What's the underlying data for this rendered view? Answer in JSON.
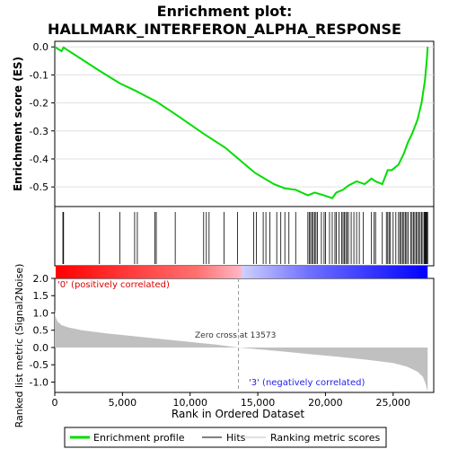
{
  "chart_data": [
    {
      "type": "line",
      "title_line1": "Enrichment plot:",
      "title_line2": "HALLMARK_INTERFERON_ALPHA_RESPONSE",
      "ylabel": "Enrichment score (ES)",
      "ylim": [
        -0.57,
        0.02
      ],
      "yticks": [
        0.0,
        -0.1,
        -0.2,
        -0.3,
        -0.4,
        -0.5
      ],
      "ytick_labels": [
        "0.0",
        "-0.1",
        "-0.2",
        "-0.3",
        "-0.4",
        "-0.5"
      ],
      "xlim": [
        0,
        28000
      ],
      "color": "#00dd00",
      "series": [
        {
          "name": "Enrichment profile",
          "x": [
            0,
            500,
            650,
            3300,
            4800,
            5900,
            7500,
            8900,
            11000,
            12600,
            14800,
            16200,
            17000,
            17800,
            18700,
            19200,
            19900,
            20500,
            20800,
            21300,
            21700,
            22300,
            22900,
            23400,
            23700,
            24200,
            24600,
            24900,
            25400,
            25800,
            26100,
            26400,
            26800,
            27100,
            27350,
            27500,
            27550
          ],
          "y": [
            0.0,
            -0.015,
            -0.002,
            -0.085,
            -0.13,
            -0.155,
            -0.195,
            -0.24,
            -0.31,
            -0.36,
            -0.45,
            -0.49,
            -0.505,
            -0.51,
            -0.53,
            -0.52,
            -0.53,
            -0.54,
            -0.52,
            -0.51,
            -0.495,
            -0.48,
            -0.49,
            -0.47,
            -0.48,
            -0.49,
            -0.44,
            -0.44,
            -0.42,
            -0.38,
            -0.34,
            -0.31,
            -0.26,
            -0.2,
            -0.12,
            -0.04,
            0.0
          ]
        }
      ]
    },
    {
      "type": "scatter",
      "series": [
        {
          "name": "Hits",
          "x": [
            600,
            650,
            3300,
            4800,
            5900,
            6100,
            7400,
            7500,
            8900,
            11000,
            11200,
            11400,
            12500,
            13500,
            14700,
            14900,
            15400,
            15600,
            15900,
            16400,
            16700,
            17000,
            17300,
            17800,
            18700,
            18800,
            18900,
            19000,
            19100,
            19200,
            19300,
            19400,
            19700,
            19900,
            20000,
            20300,
            20500,
            20700,
            20800,
            21000,
            21200,
            21300,
            21400,
            21500,
            21600,
            21700,
            21900,
            22100,
            22300,
            22500,
            22800,
            23400,
            23600,
            23700,
            24200,
            24500,
            24600,
            24700,
            24800,
            25000,
            25200,
            25400,
            25500,
            25600,
            25700,
            25800,
            25900,
            26000,
            26100,
            26300,
            26400,
            26500,
            26600,
            26700,
            26800,
            26900,
            27000,
            27100,
            27200,
            27300,
            27350,
            27400,
            27450,
            27500,
            27550
          ]
        }
      ]
    },
    {
      "type": "heatmap",
      "xlim": [
        0,
        28000
      ],
      "colors": [
        "#ff0000",
        "#ff7070",
        "#ffb8c8",
        "#d0d0ff",
        "#7070ff",
        "#0000ff"
      ]
    },
    {
      "type": "area",
      "ylabel": "Ranked list metric (Signal2Noise)",
      "xlabel": "Rank in Ordered Dataset",
      "ylim": [
        -1.3,
        2.0
      ],
      "yticks": [
        2.0,
        1.5,
        1.0,
        0.5,
        0.0,
        -0.5,
        -1.0
      ],
      "ytick_labels": [
        "2.0",
        "1.5",
        "1.0",
        "0.5",
        "0.0",
        "-0.5",
        "-1.0"
      ],
      "xticks": [
        0,
        5000,
        10000,
        15000,
        20000,
        25000
      ],
      "xtick_labels": [
        "0",
        "5,000",
        "10,000",
        "15,000",
        "20,000",
        "25,000"
      ],
      "fill": "#c0c0c0",
      "series": [
        {
          "name": "Ranking metric scores",
          "x": [
            0,
            50,
            200,
            500,
            1000,
            2000,
            4000,
            6000,
            8000,
            10000,
            12000,
            13573,
            15000,
            17000,
            19000,
            21000,
            23000,
            25000,
            26000,
            26800,
            27200,
            27400,
            27550
          ],
          "y": [
            1.1,
            0.9,
            0.75,
            0.65,
            0.58,
            0.5,
            0.4,
            0.32,
            0.24,
            0.16,
            0.08,
            0.0,
            -0.05,
            -0.12,
            -0.2,
            -0.27,
            -0.35,
            -0.45,
            -0.55,
            -0.7,
            -0.85,
            -1.05,
            -1.3
          ]
        }
      ],
      "annotations": {
        "zero_cross": "Zero cross at 13573",
        "zero_cross_x": 13573,
        "pos_label": "'0' (positively correlated)",
        "neg_label": "'3' (negatively correlated)"
      }
    }
  ],
  "legend": {
    "items": [
      "Enrichment profile",
      "Hits",
      "Ranking metric scores"
    ],
    "colors": [
      "#00dd00",
      "#000000",
      "#c0c0c0"
    ]
  }
}
